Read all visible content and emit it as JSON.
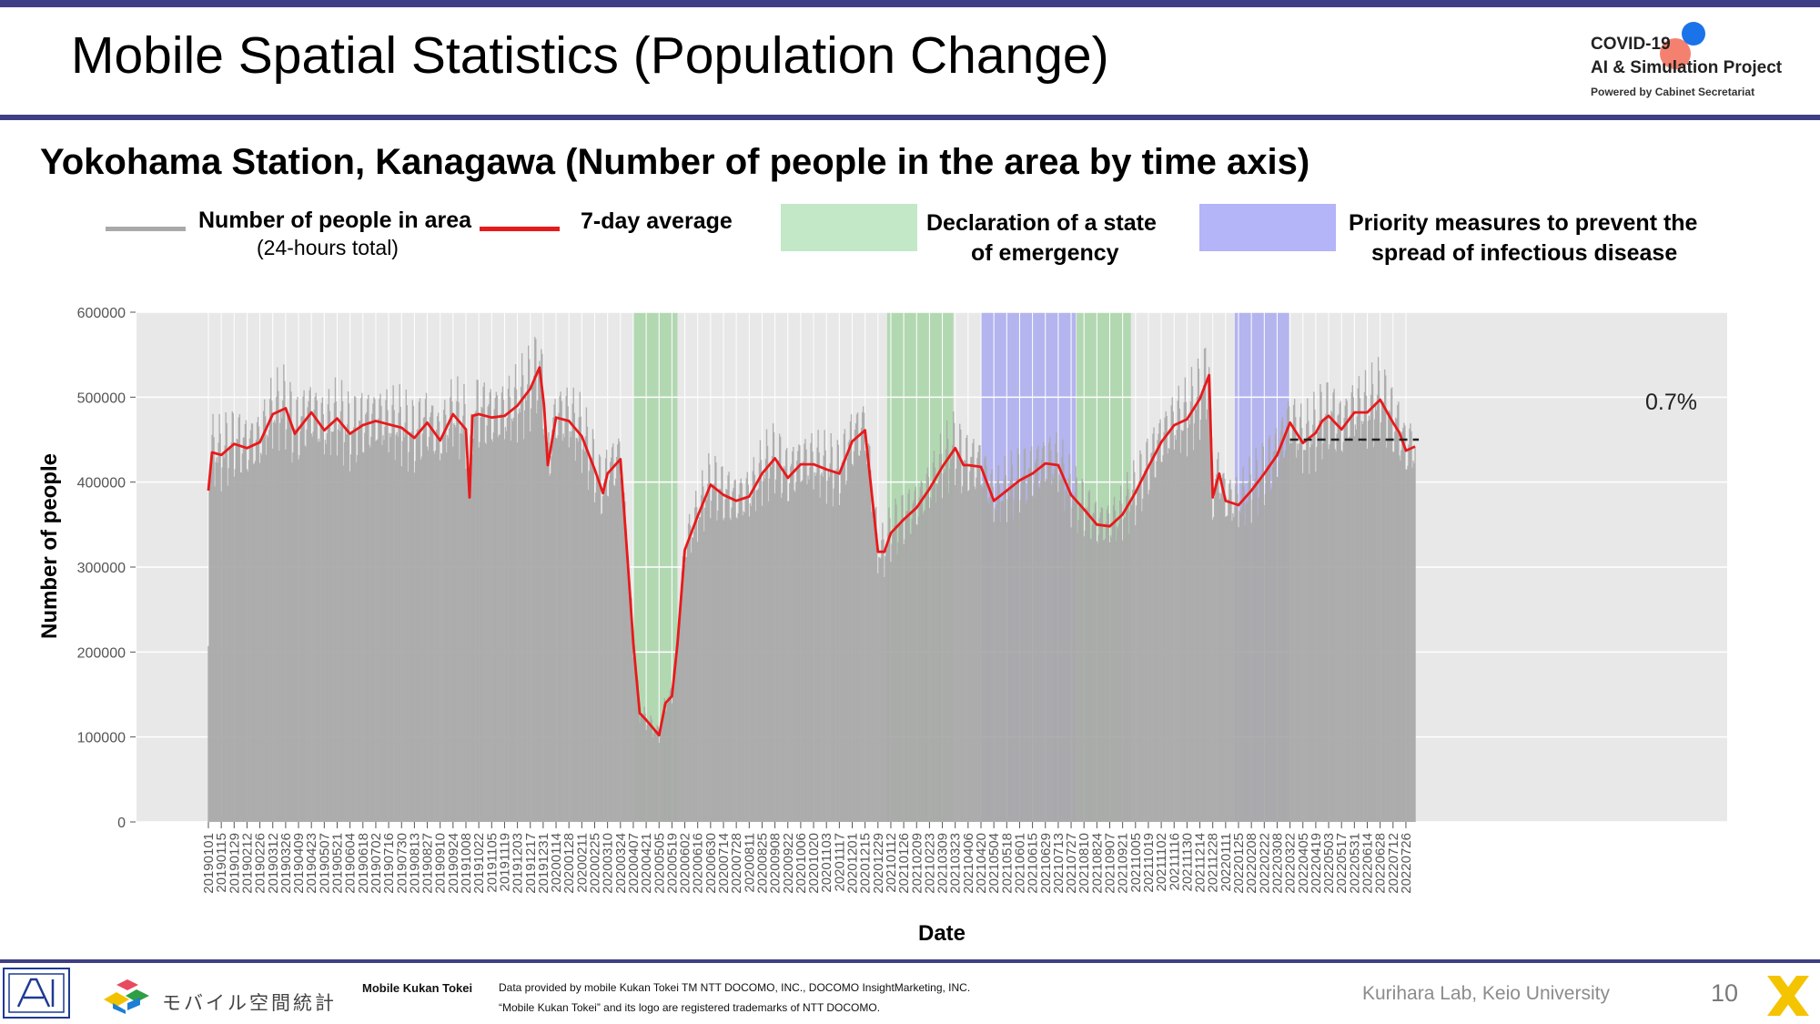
{
  "slide": {
    "title": "Mobile Spatial Statistics (Population Change)",
    "subtitle": "Yokohama Station, Kanagawa (Number of people in the area by time axis)",
    "page_number": "10"
  },
  "brand": {
    "line1": "COVID-19",
    "line2": "AI & Simulation Project",
    "line3": "Powered by Cabinet Secretariat"
  },
  "legend": {
    "daily_label": "Number of people in area",
    "daily_sublabel": "(24-hours total)",
    "avg_label": "7-day average",
    "emergency_label_1": "Declaration of a state",
    "emergency_label_2": "of emergency",
    "priority_label_1": "Priority measures to prevent the",
    "priority_label_2": "spread of infectious disease"
  },
  "footer": {
    "mobile_kukan_tokei_jp": "モバイル空間統計",
    "mobile_kukan_tokei_en": "Mobile Kukan Tokei",
    "provider_line1": "Data provided by mobile Kukan Tokei TM NTT DOCOMO, INC., DOCOMO InsightMarketing, INC.",
    "provider_line2": "“Mobile Kukan Tokei” and its logo are registered trademarks of NTT DOCOMO.",
    "lab": "Kurihara Lab, Keio University"
  },
  "colors": {
    "daily": "#a9a9a9",
    "average": "#e8191b",
    "emergency": "#a8d5a8",
    "priority": "#aaaaf0",
    "plot_bg": "#e8e8e8",
    "accent": "#3f3f86"
  },
  "chart_data": {
    "type": "line",
    "xlabel": "Date",
    "ylabel": "Number of people",
    "ylim": [
      0,
      600000
    ],
    "y_ticks": [
      0,
      100000,
      200000,
      300000,
      400000,
      500000,
      600000
    ],
    "y_tick_labels": [
      "0",
      "100000",
      "200000",
      "300000",
      "400000",
      "500000",
      "600000"
    ],
    "x_tick_labels": [
      "20190101",
      "20190115",
      "20190129",
      "20190212",
      "20190226",
      "20190312",
      "20190326",
      "20190409",
      "20190423",
      "20190507",
      "20190521",
      "20190604",
      "20190618",
      "20190702",
      "20190716",
      "20190730",
      "20190813",
      "20190827",
      "20190910",
      "20190924",
      "20191008",
      "20191022",
      "20191105",
      "20191119",
      "20191203",
      "20191217",
      "20191231",
      "20200114",
      "20200128",
      "20200211",
      "20200225",
      "20200310",
      "20200324",
      "20200407",
      "20200421",
      "20200505",
      "20200519",
      "20200602",
      "20200616",
      "20200630",
      "20200714",
      "20200728",
      "20200811",
      "20200825",
      "20200908",
      "20200922",
      "20201006",
      "20201020",
      "20201103",
      "20201117",
      "20201201",
      "20201215",
      "20201229",
      "20210112",
      "20210126",
      "20210209",
      "20210223",
      "20210309",
      "20210323",
      "20210406",
      "20210420",
      "20210504",
      "20210518",
      "20210601",
      "20210615",
      "20210629",
      "20210713",
      "20210727",
      "20210810",
      "20210824",
      "20210907",
      "20210921",
      "20211005",
      "20211019",
      "20211102",
      "20211116",
      "20211130",
      "20211214",
      "20211228",
      "20220111",
      "20220125",
      "20220208",
      "20220222",
      "20220308",
      "20220322",
      "20220405",
      "20220419",
      "20220503",
      "20220517",
      "20220531",
      "20220614",
      "20220628",
      "20220712",
      "20220726"
    ],
    "x_range": [
      "2019-01-01",
      "2022-08-31"
    ],
    "grid": true,
    "annotation": "0.7%",
    "reference_level": 450000,
    "reference_start": "2022-03-22",
    "reference_end": "2022-08-09",
    "emergency_periods": [
      [
        "2020-04-07",
        "2020-05-25"
      ],
      [
        "2021-01-08",
        "2021-03-21"
      ],
      [
        "2021-08-02",
        "2021-09-30"
      ]
    ],
    "priority_periods": [
      [
        "2021-04-20",
        "2021-08-01"
      ],
      [
        "2022-01-21",
        "2022-03-21"
      ]
    ],
    "series": [
      {
        "name": "7-day average",
        "dates": [
          "2019-01-01",
          "2019-01-05",
          "2019-01-15",
          "2019-01-29",
          "2019-02-12",
          "2019-02-26",
          "2019-03-12",
          "2019-03-26",
          "2019-04-05",
          "2019-04-23",
          "2019-05-07",
          "2019-05-21",
          "2019-06-04",
          "2019-06-18",
          "2019-07-02",
          "2019-07-16",
          "2019-07-30",
          "2019-08-13",
          "2019-08-27",
          "2019-09-10",
          "2019-09-24",
          "2019-10-08",
          "2019-10-12",
          "2019-10-15",
          "2019-10-22",
          "2019-11-05",
          "2019-11-19",
          "2019-12-03",
          "2019-12-17",
          "2019-12-27",
          "2020-01-01",
          "2020-01-05",
          "2020-01-14",
          "2020-01-28",
          "2020-02-11",
          "2020-02-25",
          "2020-03-05",
          "2020-03-10",
          "2020-03-24",
          "2020-04-01",
          "2020-04-07",
          "2020-04-14",
          "2020-04-21",
          "2020-05-05",
          "2020-05-12",
          "2020-05-19",
          "2020-05-25",
          "2020-06-02",
          "2020-06-16",
          "2020-06-30",
          "2020-07-14",
          "2020-07-28",
          "2020-08-11",
          "2020-08-25",
          "2020-09-08",
          "2020-09-22",
          "2020-10-06",
          "2020-10-20",
          "2020-11-03",
          "2020-11-17",
          "2020-12-01",
          "2020-12-15",
          "2020-12-29",
          "2021-01-05",
          "2021-01-12",
          "2021-01-26",
          "2021-02-09",
          "2021-02-23",
          "2021-03-09",
          "2021-03-23",
          "2021-04-01",
          "2021-04-06",
          "2021-04-20",
          "2021-05-04",
          "2021-05-18",
          "2021-06-01",
          "2021-06-15",
          "2021-06-29",
          "2021-07-13",
          "2021-07-27",
          "2021-08-10",
          "2021-08-24",
          "2021-09-07",
          "2021-09-21",
          "2021-10-05",
          "2021-10-19",
          "2021-11-02",
          "2021-11-16",
          "2021-11-30",
          "2021-12-14",
          "2021-12-24",
          "2021-12-28",
          "2022-01-04",
          "2022-01-11",
          "2022-01-25",
          "2022-02-08",
          "2022-02-22",
          "2022-03-08",
          "2022-03-22",
          "2022-04-05",
          "2022-04-19",
          "2022-04-26",
          "2022-05-03",
          "2022-05-17",
          "2022-05-31",
          "2022-06-14",
          "2022-06-28",
          "2022-07-12",
          "2022-07-19",
          "2022-07-26",
          "2022-08-05"
        ],
        "values": [
          390000,
          435000,
          432000,
          445000,
          440000,
          447000,
          480000,
          487000,
          457000,
          482000,
          461000,
          475000,
          457000,
          467000,
          472000,
          468000,
          464000,
          452000,
          470000,
          449000,
          480000,
          462000,
          382000,
          478000,
          480000,
          476000,
          478000,
          490000,
          510000,
          535000,
          490000,
          420000,
          476000,
          472000,
          454000,
          415000,
          387000,
          410000,
          427000,
          305000,
          210000,
          128000,
          120000,
          102000,
          140000,
          148000,
          210000,
          320000,
          360000,
          397000,
          385000,
          378000,
          383000,
          410000,
          428000,
          405000,
          421000,
          421000,
          415000,
          410000,
          448000,
          461000,
          318000,
          318000,
          340000,
          356000,
          370000,
          392000,
          418000,
          440000,
          420000,
          420000,
          418000,
          378000,
          390000,
          402000,
          410000,
          422000,
          420000,
          385000,
          368000,
          350000,
          348000,
          362000,
          388000,
          418000,
          447000,
          467000,
          474000,
          498000,
          526000,
          382000,
          410000,
          378000,
          373000,
          390000,
          410000,
          432000,
          470000,
          446000,
          458000,
          472000,
          478000,
          462000,
          482000,
          482000,
          497000,
          470000,
          458000,
          437000,
          442000
        ]
      }
    ]
  }
}
